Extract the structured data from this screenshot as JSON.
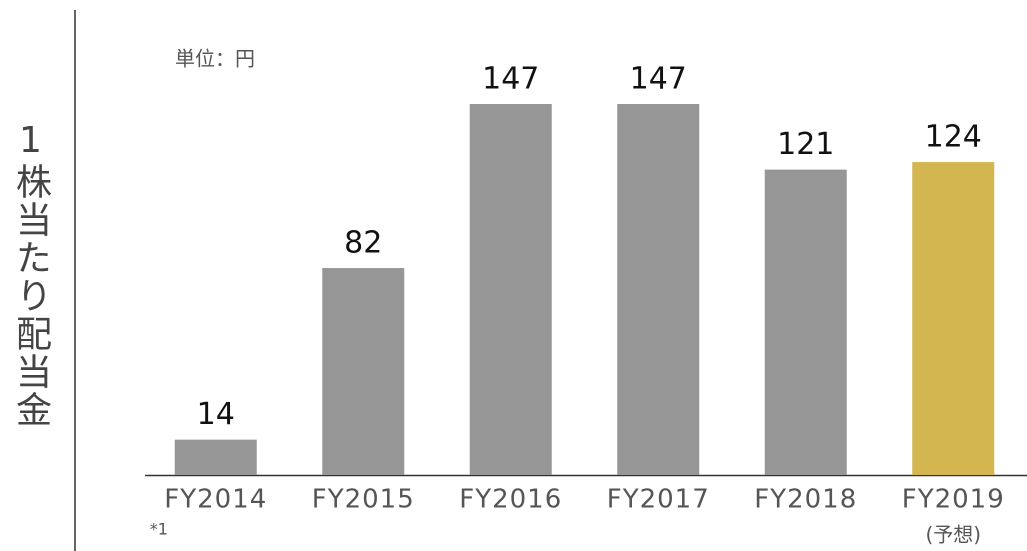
{
  "chart_data": {
    "type": "bar",
    "axis_title": "1株当たり配当金",
    "unit_label": "単位：円",
    "categories": [
      "FY2014",
      "FY2015",
      "FY2016",
      "FY2017",
      "FY2018",
      "FY2019"
    ],
    "category_notes": [
      "*1",
      null,
      null,
      null,
      null,
      "(予想)"
    ],
    "values": [
      14,
      82,
      147,
      147,
      121,
      124
    ],
    "colors": [
      "#969696",
      "#969696",
      "#969696",
      "#969696",
      "#969696",
      "#d4b650"
    ]
  }
}
